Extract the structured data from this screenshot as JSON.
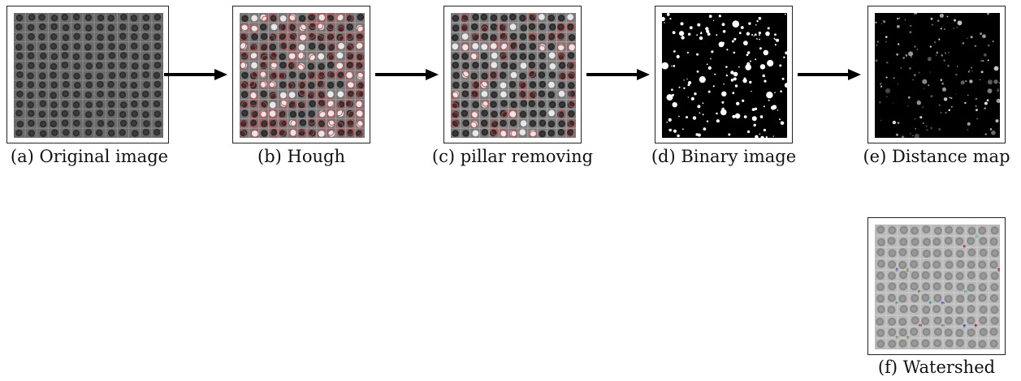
{
  "panels": [
    {
      "id": "a",
      "caption": "(a) Original image",
      "style": "original"
    },
    {
      "id": "b",
      "caption": "(b) Hough",
      "style": "hough"
    },
    {
      "id": "c",
      "caption": "(c) pillar removing",
      "style": "pillar"
    },
    {
      "id": "d",
      "caption": "(d) Binary image",
      "style": "binary"
    },
    {
      "id": "e",
      "caption": "(e) Distance map",
      "style": "distance"
    },
    {
      "id": "f",
      "caption": "(f) Watershed",
      "style": "watershed"
    }
  ],
  "colors": {
    "circle_red": "#e23a3a",
    "arrow": "#000000",
    "frame": "#222222"
  }
}
